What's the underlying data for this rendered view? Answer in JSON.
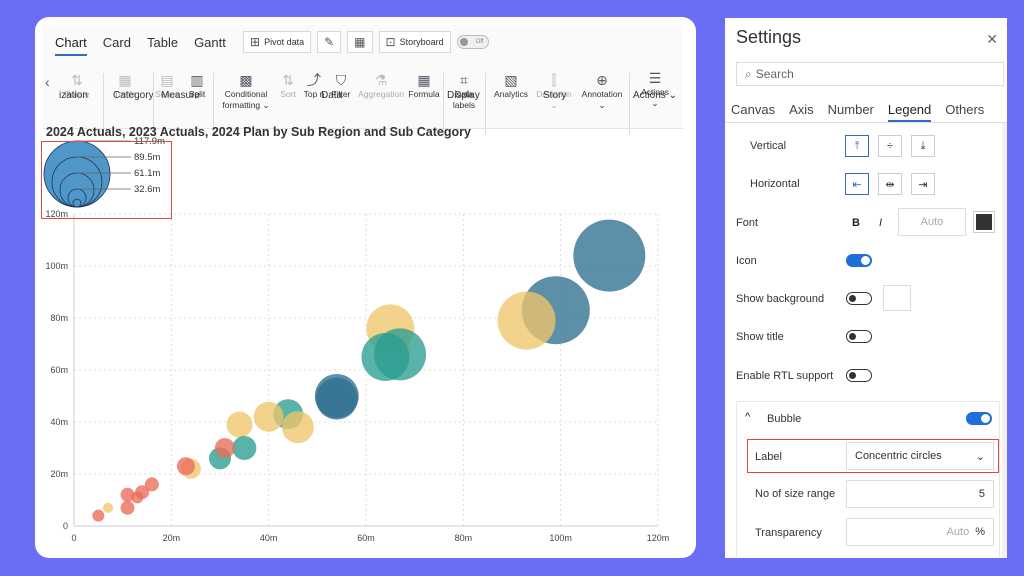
{
  "toolbar": {
    "tabs": [
      "Chart",
      "Card",
      "Table",
      "Gantt"
    ],
    "pivot_label": "Pivot data",
    "storyboard_label": "Storyboard",
    "toggle_label": "Off",
    "ribbon": {
      "rotate": "Rotate",
      "trellis": "Trellis",
      "series": "Series",
      "split": "Split",
      "conditional": "Conditional",
      "formatting": "formatting",
      "sort": "Sort",
      "topn": "Top n",
      "filter": "Filter",
      "aggregation": "Aggregation",
      "formula": "Formula",
      "data": "Data",
      "labels": "labels",
      "analytics": "Analytics",
      "deviation": "Deviation",
      "annotation": "Annotation",
      "actions": "Actions"
    },
    "groups": {
      "ization": "ization",
      "category": "Category",
      "measure": "Measure",
      "data": "Data",
      "display": "Display",
      "story": "Story",
      "actions": "Actions"
    }
  },
  "chart_data": {
    "type": "scatter",
    "title": "2024 Actuals, 2023 Actuals, 2024 Plan by Sub Region and Sub Category",
    "xlim": [
      0,
      120
    ],
    "ylim": [
      0,
      120
    ],
    "x_ticks": [
      "0",
      "20m",
      "40m",
      "60m",
      "80m",
      "100m",
      "120m"
    ],
    "y_ticks": [
      "0",
      "20m",
      "40m",
      "60m",
      "80m",
      "100m",
      "120m"
    ],
    "size_legend": [
      "117.9m",
      "89.5m",
      "61.1m",
      "32.6m"
    ],
    "colors": {
      "red": "#ea6b5a",
      "yellow": "#efc56a",
      "teal": "#2a9d8f",
      "blue": "#2f6f8f"
    },
    "points": [
      {
        "x": 110,
        "y": 104,
        "r": 36,
        "c": "blue"
      },
      {
        "x": 99,
        "y": 83,
        "r": 34,
        "c": "blue"
      },
      {
        "x": 93,
        "y": 79,
        "r": 29,
        "c": "yellow"
      },
      {
        "x": 65,
        "y": 76,
        "r": 24,
        "c": "yellow"
      },
      {
        "x": 64,
        "y": 65,
        "r": 24,
        "c": "teal"
      },
      {
        "x": 67,
        "y": 66,
        "r": 26,
        "c": "teal"
      },
      {
        "x": 54,
        "y": 50,
        "r": 22,
        "c": "blue"
      },
      {
        "x": 54,
        "y": 49,
        "r": 21,
        "c": "blue"
      },
      {
        "x": 44,
        "y": 43,
        "r": 15,
        "c": "teal"
      },
      {
        "x": 40,
        "y": 42,
        "r": 15,
        "c": "yellow"
      },
      {
        "x": 46,
        "y": 38,
        "r": 16,
        "c": "yellow"
      },
      {
        "x": 34,
        "y": 39,
        "r": 13,
        "c": "yellow"
      },
      {
        "x": 35,
        "y": 30,
        "r": 12,
        "c": "teal"
      },
      {
        "x": 30,
        "y": 26,
        "r": 11,
        "c": "teal"
      },
      {
        "x": 31,
        "y": 30,
        "r": 10,
        "c": "red"
      },
      {
        "x": 24,
        "y": 22,
        "r": 10,
        "c": "yellow"
      },
      {
        "x": 23,
        "y": 23,
        "r": 9,
        "c": "red"
      },
      {
        "x": 16,
        "y": 16,
        "r": 7,
        "c": "red"
      },
      {
        "x": 14,
        "y": 13,
        "r": 7,
        "c": "red"
      },
      {
        "x": 11,
        "y": 12,
        "r": 7,
        "c": "red"
      },
      {
        "x": 13,
        "y": 11,
        "r": 6,
        "c": "red"
      },
      {
        "x": 11,
        "y": 7,
        "r": 7,
        "c": "red"
      },
      {
        "x": 7,
        "y": 7,
        "r": 5,
        "c": "yellow"
      },
      {
        "x": 5,
        "y": 4,
        "r": 6,
        "c": "red"
      }
    ]
  },
  "panel": {
    "title": "Settings",
    "search_placeholder": "Search",
    "tabs": [
      "Canvas",
      "Axis",
      "Number",
      "Legend",
      "Others"
    ],
    "vertical": "Vertical",
    "horizontal": "Horizontal",
    "font": "Font",
    "bold": "B",
    "italic": "I",
    "font_size": "Auto",
    "icon": "Icon",
    "show_background": "Show background",
    "show_title": "Show title",
    "rtl": "Enable RTL support",
    "bubble": "Bubble",
    "label": "Label",
    "label_value": "Concentric circles",
    "size_range": "No of size range",
    "size_range_value": "5",
    "transparency": "Transparency",
    "transparency_value": "Auto",
    "percent": "%"
  }
}
